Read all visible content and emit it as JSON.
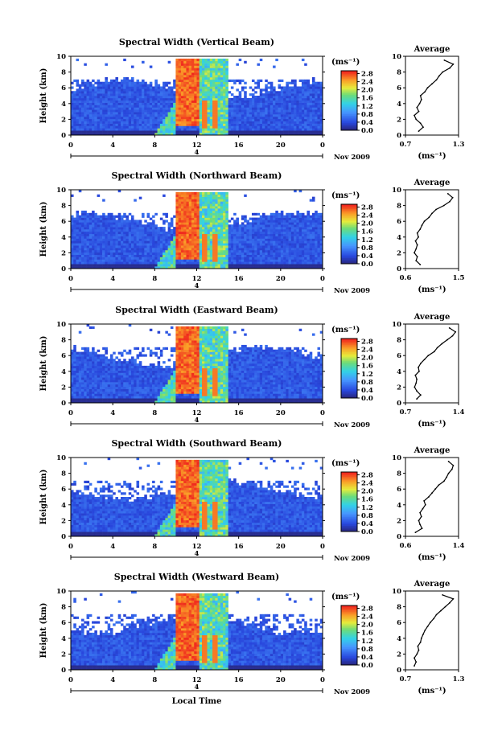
{
  "chart_data": [
    {
      "type": "heatmap",
      "title": "Spectral Width (Vertical Beam)",
      "ylabel": "Height (km)",
      "xlim": [
        0,
        24
      ],
      "ylim": [
        0,
        10
      ],
      "x_ticks": [
        "0",
        "4",
        "8",
        "12",
        "16",
        "20",
        "0"
      ],
      "y_ticks": [
        "0",
        "2",
        "4",
        "6",
        "8",
        "10"
      ],
      "date_labels": {
        "day": "4",
        "month_year": "Nov 2009"
      },
      "colorbar": {
        "unit": "(ms⁻¹)",
        "ticks": [
          "0.0",
          "0.4",
          "0.8",
          "1.2",
          "1.6",
          "2.0",
          "2.4",
          "2.8"
        ]
      },
      "profile": {
        "title": "Average",
        "xlabel": "(ms⁻¹)",
        "x_ticks": [
          "0.7",
          "1.3"
        ],
        "xlim": [
          0.7,
          1.3
        ],
        "heights": [
          0.5,
          1,
          1.5,
          2,
          2.5,
          3,
          3.5,
          4,
          4.5,
          5,
          5.5,
          6,
          6.5,
          7,
          7.5,
          8,
          8.5,
          9,
          9.5
        ],
        "values": [
          0.85,
          0.9,
          0.87,
          0.82,
          0.8,
          0.85,
          0.83,
          0.86,
          0.88,
          0.87,
          0.92,
          0.95,
          1.0,
          1.05,
          1.08,
          1.12,
          1.2,
          1.24,
          1.14
        ]
      }
    },
    {
      "type": "heatmap",
      "title": "Spectral Width (Northward Beam)",
      "ylabel": "Height (km)",
      "xlim": [
        0,
        24
      ],
      "ylim": [
        0,
        10
      ],
      "x_ticks": [
        "0",
        "4",
        "8",
        "12",
        "16",
        "20",
        "0"
      ],
      "y_ticks": [
        "0",
        "2",
        "4",
        "6",
        "8",
        "10"
      ],
      "date_labels": {
        "day": "4",
        "month_year": "Nov 2009"
      },
      "colorbar": {
        "unit": "(ms⁻¹)",
        "ticks": [
          "0.0",
          "0.4",
          "0.8",
          "1.2",
          "1.6",
          "2.0",
          "2.4",
          "2.8"
        ]
      },
      "profile": {
        "title": "Average",
        "xlabel": "(ms⁻¹)",
        "x_ticks": [
          "0.6",
          "1.5"
        ],
        "xlim": [
          0.6,
          1.5
        ],
        "heights": [
          0.5,
          1,
          1.5,
          2,
          2.5,
          3,
          3.5,
          4,
          4.5,
          5,
          5.5,
          6,
          6.5,
          7,
          7.5,
          8,
          8.5,
          9,
          9.5
        ],
        "values": [
          0.85,
          0.78,
          0.8,
          0.75,
          0.78,
          0.8,
          0.77,
          0.82,
          0.8,
          0.85,
          0.88,
          0.92,
          1.0,
          1.05,
          1.12,
          1.25,
          1.35,
          1.4,
          1.32
        ]
      }
    },
    {
      "type": "heatmap",
      "title": "Spectral Width (Eastward Beam)",
      "ylabel": "Height (km)",
      "xlim": [
        0,
        24
      ],
      "ylim": [
        0,
        10
      ],
      "x_ticks": [
        "0",
        "4",
        "8",
        "12",
        "16",
        "20",
        "0"
      ],
      "y_ticks": [
        "0",
        "2",
        "4",
        "6",
        "8",
        "10"
      ],
      "date_labels": {
        "day": "4",
        "month_year": "Nov 2009"
      },
      "colorbar": {
        "unit": "(ms⁻¹)",
        "ticks": [
          "0.0",
          "0.4",
          "0.8",
          "1.2",
          "1.6",
          "2.0",
          "2.4",
          "2.8"
        ]
      },
      "profile": {
        "title": "Average",
        "xlabel": "(ms⁻¹)",
        "x_ticks": [
          "0.7",
          "1.4"
        ],
        "xlim": [
          0.7,
          1.4
        ],
        "heights": [
          0.5,
          1,
          1.5,
          2,
          2.5,
          3,
          3.5,
          4,
          4.5,
          5,
          5.5,
          6,
          6.5,
          7,
          7.5,
          8,
          8.5,
          9,
          9.5
        ],
        "values": [
          0.85,
          0.9,
          0.85,
          0.82,
          0.84,
          0.85,
          0.83,
          0.88,
          0.87,
          0.9,
          0.95,
          1.0,
          1.08,
          1.12,
          1.18,
          1.25,
          1.32,
          1.36,
          1.28
        ]
      }
    },
    {
      "type": "heatmap",
      "title": "Spectral Width (Southward Beam)",
      "ylabel": "Height (km)",
      "xlim": [
        0,
        24
      ],
      "ylim": [
        0,
        10
      ],
      "x_ticks": [
        "0",
        "4",
        "8",
        "12",
        "16",
        "20",
        "0"
      ],
      "y_ticks": [
        "0",
        "2",
        "4",
        "6",
        "8",
        "10"
      ],
      "date_labels": {
        "day": "4",
        "month_year": "Nov 2009"
      },
      "colorbar": {
        "unit": "(ms⁻¹)",
        "ticks": [
          "0.0",
          "0.4",
          "0.8",
          "1.2",
          "1.6",
          "2.0",
          "2.4",
          "2.8"
        ]
      },
      "profile": {
        "title": "Average",
        "xlabel": "(ms⁻¹)",
        "x_ticks": [
          "0.6",
          "1.4"
        ],
        "xlim": [
          0.6,
          1.4
        ],
        "heights": [
          0.5,
          1,
          1.5,
          2,
          2.5,
          3,
          3.5,
          4,
          4.5,
          5,
          5.5,
          6,
          6.5,
          7,
          7.5,
          8,
          8.5,
          9,
          9.5
        ],
        "values": [
          0.75,
          0.85,
          0.82,
          0.8,
          0.84,
          0.82,
          0.86,
          0.9,
          0.88,
          0.95,
          1.0,
          1.05,
          1.1,
          1.18,
          1.22,
          1.25,
          1.3,
          1.32,
          1.25
        ]
      }
    },
    {
      "type": "heatmap",
      "title": "Spectral Width (Westward Beam)",
      "ylabel": "Height (km)",
      "xlabel": "Local Time",
      "xlim": [
        0,
        24
      ],
      "ylim": [
        0,
        10
      ],
      "x_ticks": [
        "0",
        "4",
        "8",
        "12",
        "16",
        "20",
        "0"
      ],
      "y_ticks": [
        "0",
        "2",
        "4",
        "6",
        "8",
        "10"
      ],
      "date_labels": {
        "day": "4",
        "month_year": "Nov 2009"
      },
      "colorbar": {
        "unit": "(ms⁻¹)",
        "ticks": [
          "0.0",
          "0.4",
          "0.8",
          "1.2",
          "1.6",
          "2.0",
          "2.4",
          "2.8"
        ]
      },
      "profile": {
        "title": "Average",
        "xlabel": "(ms⁻¹)",
        "x_ticks": [
          "0.7",
          "1.3"
        ],
        "xlim": [
          0.7,
          1.3
        ],
        "heights": [
          0.5,
          1,
          1.5,
          2,
          2.5,
          3,
          3.5,
          4,
          4.5,
          5,
          5.5,
          6,
          6.5,
          7,
          7.5,
          8,
          8.5,
          9,
          9.5
        ],
        "values": [
          0.8,
          0.82,
          0.8,
          0.83,
          0.85,
          0.84,
          0.87,
          0.88,
          0.9,
          0.92,
          0.95,
          0.98,
          1.02,
          1.05,
          1.1,
          1.15,
          1.2,
          1.24,
          1.12
        ]
      }
    }
  ]
}
